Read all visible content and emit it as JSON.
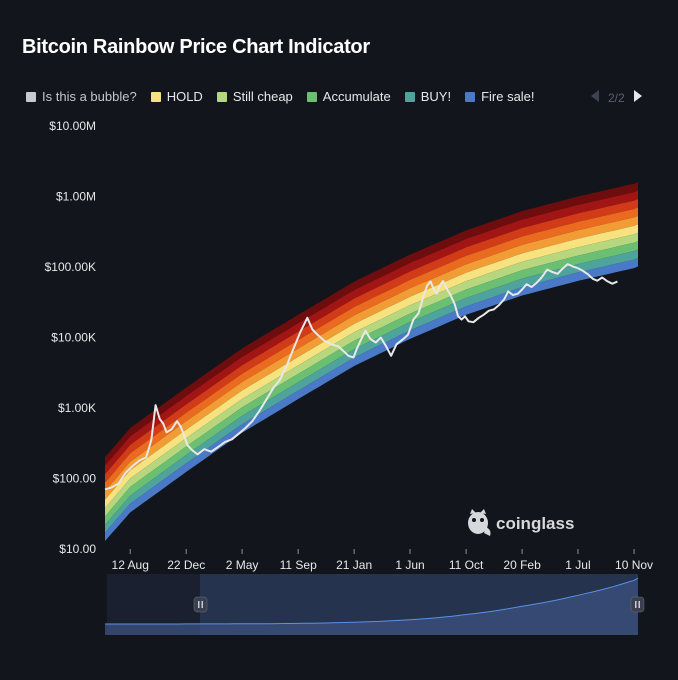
{
  "title": "Bitcoin Rainbow Price Chart Indicator",
  "legend": [
    {
      "label": "Is this a bubble?",
      "color": "#c7c9cc",
      "enabled": false
    },
    {
      "label": "HOLD",
      "color": "#f6e27f",
      "enabled": true
    },
    {
      "label": "Still cheap",
      "color": "#b6d77e",
      "enabled": true
    },
    {
      "label": "Accumulate",
      "color": "#6bbf72",
      "enabled": true
    },
    {
      "label": "BUY!",
      "color": "#4ea39c",
      "enabled": true
    },
    {
      "label": "Fire sale!",
      "color": "#4a79c8",
      "enabled": true
    }
  ],
  "pager": {
    "text": "2/2",
    "prev_icon": "triangle-left-icon",
    "next_icon": "triangle-right-icon"
  },
  "watermark": {
    "text": "coinglass",
    "icon": "coinglass-logo-icon"
  },
  "navigator": {
    "handle_icon": "pause-handle-icon"
  },
  "chart_data": {
    "type": "area",
    "yscale": "log",
    "ylim": [
      10,
      10000000
    ],
    "y_ticks": [
      {
        "value": 10,
        "label": "$10.00"
      },
      {
        "value": 100,
        "label": "$100.00"
      },
      {
        "value": 1000,
        "label": "$1.00K"
      },
      {
        "value": 10000,
        "label": "$10.00K"
      },
      {
        "value": 100000,
        "label": "$100.00K"
      },
      {
        "value": 1000000,
        "label": "$1.00M"
      },
      {
        "value": 10000000,
        "label": "$10.00M"
      }
    ],
    "xlim": [
      "2012-01-01",
      "2024-12-15"
    ],
    "x_ticks": [
      {
        "date": "2012-08-12",
        "label": "12 Aug"
      },
      {
        "date": "2013-12-22",
        "label": "22 Dec"
      },
      {
        "date": "2015-05-02",
        "label": "2 May"
      },
      {
        "date": "2016-09-11",
        "label": "11 Sep"
      },
      {
        "date": "2018-01-21",
        "label": "21 Jan"
      },
      {
        "date": "2019-06-01",
        "label": "1 Jun"
      },
      {
        "date": "2020-10-11",
        "label": "11 Oct"
      },
      {
        "date": "2022-02-20",
        "label": "20 Feb"
      },
      {
        "date": "2023-07-01",
        "label": "1 Jul"
      },
      {
        "date": "2024-11-10",
        "label": "10 Nov"
      }
    ],
    "bands": {
      "colors": [
        "#6e0d0d",
        "#a11515",
        "#d23b17",
        "#ea6a1f",
        "#f29c36",
        "#f6e27f",
        "#b6d77e",
        "#6bbf72",
        "#4ea39c",
        "#4a79c8"
      ],
      "edges": [
        {
          "date": "2012-01-01",
          "values": [
            200,
            152,
            115,
            87,
            66,
            50,
            38,
            29,
            22,
            17,
            13
          ]
        },
        {
          "date": "2012-08-12",
          "values": [
            520,
            395,
            300,
            228,
            173,
            131,
            100,
            76,
            57,
            44,
            33
          ]
        },
        {
          "date": "2013-12-22",
          "values": [
            1950,
            1480,
            1125,
            855,
            648,
            492,
            374,
            284,
            216,
            164,
            124
          ]
        },
        {
          "date": "2015-05-02",
          "values": [
            7000,
            5310,
            4030,
            3060,
            2330,
            1770,
            1340,
            1020,
            774,
            588,
            446
          ]
        },
        {
          "date": "2016-09-11",
          "values": [
            21000,
            15900,
            12100,
            9200,
            6970,
            5300,
            4020,
            3050,
            2320,
            1760,
            1340
          ]
        },
        {
          "date": "2018-01-21",
          "values": [
            62000,
            47000,
            35700,
            27100,
            20600,
            15600,
            11900,
            9010,
            6840,
            5190,
            3940
          ]
        },
        {
          "date": "2019-06-01",
          "values": [
            150000,
            114000,
            86400,
            65600,
            49800,
            37800,
            28700,
            21800,
            16600,
            12600,
            9540
          ]
        },
        {
          "date": "2020-10-11",
          "values": [
            330000,
            250000,
            190000,
            144000,
            109000,
            83100,
            63100,
            47900,
            36400,
            27600,
            21000
          ]
        },
        {
          "date": "2022-02-20",
          "values": [
            620000,
            471000,
            357000,
            271000,
            206000,
            156000,
            119000,
            90100,
            68400,
            51900,
            39400
          ]
        },
        {
          "date": "2023-07-01",
          "values": [
            1000000,
            759000,
            576000,
            437000,
            332000,
            252000,
            191000,
            145000,
            110000,
            83700,
            63500
          ]
        },
        {
          "date": "2024-11-10",
          "values": [
            1520000,
            1150000,
            876000,
            665000,
            505000,
            383000,
            291000,
            221000,
            168000,
            127000,
            96600
          ]
        },
        {
          "date": "2024-12-15",
          "values": [
            1600000,
            1210000,
            922000,
            700000,
            531000,
            403000,
            306000,
            232000,
            176000,
            134000,
            102000
          ]
        }
      ]
    },
    "series": [
      {
        "color": "#e8e8e8",
        "points": [
          [
            "2012-01-01",
            70
          ],
          [
            "2012-03-01",
            75
          ],
          [
            "2012-05-01",
            85
          ],
          [
            "2012-07-01",
            120
          ],
          [
            "2012-09-01",
            150
          ],
          [
            "2012-11-01",
            180
          ],
          [
            "2013-01-01",
            200
          ],
          [
            "2013-02-15",
            350
          ],
          [
            "2013-03-25",
            1100
          ],
          [
            "2013-05-01",
            700
          ],
          [
            "2013-06-01",
            600
          ],
          [
            "2013-07-01",
            450
          ],
          [
            "2013-08-15",
            500
          ],
          [
            "2013-10-01",
            650
          ],
          [
            "2013-11-01",
            550
          ],
          [
            "2013-12-01",
            420
          ],
          [
            "2014-01-01",
            300
          ],
          [
            "2014-02-15",
            250
          ],
          [
            "2014-04-01",
            220
          ],
          [
            "2014-06-01",
            260
          ],
          [
            "2014-08-01",
            240
          ],
          [
            "2014-10-01",
            280
          ],
          [
            "2014-12-01",
            330
          ],
          [
            "2015-02-01",
            360
          ],
          [
            "2015-04-01",
            430
          ],
          [
            "2015-06-01",
            520
          ],
          [
            "2015-08-01",
            650
          ],
          [
            "2015-10-01",
            900
          ],
          [
            "2015-12-01",
            1300
          ],
          [
            "2016-02-01",
            1900
          ],
          [
            "2016-04-01",
            2500
          ],
          [
            "2016-06-01",
            4000
          ],
          [
            "2016-08-01",
            7000
          ],
          [
            "2016-10-01",
            12000
          ],
          [
            "2016-12-01",
            19000
          ],
          [
            "2017-01-15",
            13000
          ],
          [
            "2017-03-01",
            11000
          ],
          [
            "2017-05-01",
            9000
          ],
          [
            "2017-07-01",
            8000
          ],
          [
            "2017-09-01",
            7500
          ],
          [
            "2017-10-15",
            6500
          ],
          [
            "2017-12-01",
            5500
          ],
          [
            "2018-01-15",
            5200
          ],
          [
            "2018-02-15",
            7000
          ],
          [
            "2018-04-01",
            10000
          ],
          [
            "2018-05-01",
            12500
          ],
          [
            "2018-06-15",
            9500
          ],
          [
            "2018-08-01",
            8500
          ],
          [
            "2018-09-15",
            10000
          ],
          [
            "2018-11-01",
            7500
          ],
          [
            "2018-12-15",
            5500
          ],
          [
            "2019-02-01",
            8000
          ],
          [
            "2019-04-01",
            9500
          ],
          [
            "2019-05-15",
            11000
          ],
          [
            "2019-07-01",
            18000
          ],
          [
            "2019-08-15",
            22000
          ],
          [
            "2019-10-01",
            40000
          ],
          [
            "2019-11-01",
            55000
          ],
          [
            "2019-12-01",
            62000
          ],
          [
            "2020-01-01",
            47000
          ],
          [
            "2020-01-25",
            42000
          ],
          [
            "2020-02-20",
            55000
          ],
          [
            "2020-03-20",
            63000
          ],
          [
            "2020-04-20",
            50000
          ],
          [
            "2020-05-25",
            40000
          ],
          [
            "2020-07-01",
            30000
          ],
          [
            "2020-08-01",
            20000
          ],
          [
            "2020-09-01",
            18000
          ],
          [
            "2020-10-01",
            20000
          ],
          [
            "2020-11-01",
            17000
          ],
          [
            "2020-12-15",
            16500
          ],
          [
            "2021-02-01",
            19000
          ],
          [
            "2021-03-15",
            21000
          ],
          [
            "2021-05-01",
            24000
          ],
          [
            "2021-06-15",
            25000
          ],
          [
            "2021-08-01",
            29000
          ],
          [
            "2021-09-15",
            35000
          ],
          [
            "2021-10-20",
            45000
          ],
          [
            "2021-12-01",
            40000
          ],
          [
            "2022-01-15",
            42000
          ],
          [
            "2022-02-20",
            48000
          ],
          [
            "2022-04-01",
            57000
          ],
          [
            "2022-05-15",
            52000
          ],
          [
            "2022-07-01",
            60000
          ],
          [
            "2022-08-15",
            72000
          ],
          [
            "2022-10-01",
            92000
          ],
          [
            "2022-11-15",
            85000
          ],
          [
            "2023-01-01",
            80000
          ],
          [
            "2023-02-15",
            95000
          ],
          [
            "2023-04-01",
            110000
          ],
          [
            "2023-05-15",
            102000
          ],
          [
            "2023-07-01",
            96000
          ],
          [
            "2023-08-15",
            88000
          ],
          [
            "2023-10-01",
            78000
          ],
          [
            "2023-11-10",
            68000
          ],
          [
            "2023-12-20",
            64000
          ],
          [
            "2024-02-01",
            71000
          ],
          [
            "2024-03-15",
            63000
          ],
          [
            "2024-05-01",
            58000
          ],
          [
            "2024-06-15",
            62000
          ]
        ]
      }
    ]
  }
}
